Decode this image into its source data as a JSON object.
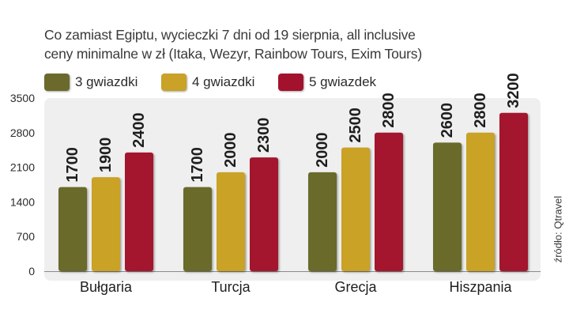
{
  "title_lines": [
    "Co zamiast Egiptu, wycieczki 7 dni od 19 sierpnia, all inclusive",
    "ceny minimalne w zł (Itaka, Wezyr, Rainbow Tours, Exim Tours)"
  ],
  "source": "źródło: Qtravel",
  "colors": {
    "series_1": "#6b6a2c",
    "series_2": "#c9a227",
    "series_3": "#a3122d",
    "plot_background": "#efefef"
  },
  "chart_data": {
    "type": "bar",
    "categories": [
      "Bułgaria",
      "Turcja",
      "Grecja",
      "Hiszpania"
    ],
    "series": [
      {
        "name": "3 gwiazdki",
        "values": [
          1700,
          1700,
          2000,
          2600
        ]
      },
      {
        "name": "4 gwiazdki",
        "values": [
          1900,
          2000,
          2500,
          2800
        ]
      },
      {
        "name": "5 gwiazdek",
        "values": [
          2400,
          2300,
          2800,
          3200
        ]
      }
    ],
    "ylim": [
      0,
      3500
    ],
    "yticks": [
      0,
      700,
      1400,
      2100,
      2800,
      3500
    ],
    "legend_position": "top",
    "data_labels": "rotated-above-bars",
    "grid": false
  }
}
